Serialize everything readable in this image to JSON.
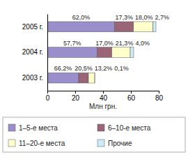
{
  "chart_data": {
    "type": "bar",
    "orientation": "horizontal",
    "stacked": true,
    "categories": [
      "2005 г.",
      "2004 г.",
      "2003 г."
    ],
    "xlabel": "Млн грн.",
    "xlim": [
      0,
      80
    ],
    "xticks": [
      0,
      20,
      40,
      60,
      80
    ],
    "legend": "bottom",
    "series": [
      {
        "name": "1–5-е места",
        "color": "#9b8fcb",
        "values": [
          48.4,
          35.8,
          22.5
        ],
        "share_labels": [
          "62,0%",
          "57,7%",
          "66,2%"
        ]
      },
      {
        "name": "6–10-е места",
        "color": "#9a6677",
        "values": [
          13.5,
          10.5,
          7.0
        ],
        "share_labels": [
          "17,3%",
          "17,0%",
          "20,5%"
        ]
      },
      {
        "name": "11–20-е места",
        "color": "#ffffcc",
        "values": [
          14.0,
          13.2,
          4.5
        ],
        "share_labels": [
          "18,0%",
          "21,3%",
          "13,2%"
        ]
      },
      {
        "name": "Прочие",
        "color": "#ccecf8",
        "values": [
          2.1,
          2.5,
          0.03
        ],
        "share_labels": [
          "2,7%",
          "4,0%",
          "0,1%"
        ]
      }
    ]
  }
}
